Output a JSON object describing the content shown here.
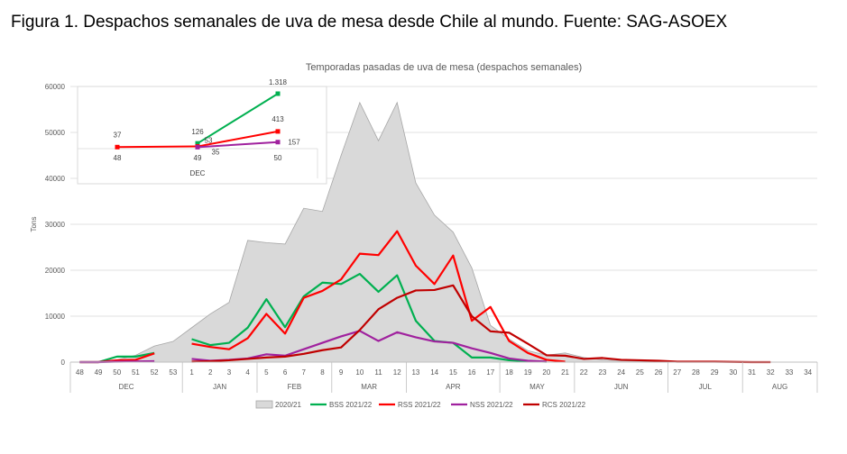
{
  "caption": "Figura 1. Despachos semanales de uva de mesa desde Chile al mundo. Fuente: SAG-ASOEX",
  "chart_data": [
    {
      "type": "line",
      "title": "Temporadas pasadas de uva de mesa (despachos semanales)",
      "ylabel": "Tons",
      "xlabel": "",
      "ylim": [
        0,
        60000
      ],
      "yticks": [
        0,
        10000,
        20000,
        30000,
        40000,
        50000,
        60000
      ],
      "grid": true,
      "legend_position": "bottom",
      "x": [
        "48",
        "49",
        "50",
        "51",
        "52",
        "53",
        "1",
        "2",
        "3",
        "4",
        "5",
        "6",
        "7",
        "8",
        "9",
        "10",
        "11",
        "12",
        "13",
        "14",
        "15",
        "16",
        "17",
        "18",
        "19",
        "20",
        "21",
        "22",
        "23",
        "24",
        "25",
        "26",
        "27",
        "28",
        "29",
        "30",
        "31",
        "32",
        "33",
        "34"
      ],
      "month_groups": [
        {
          "label": "DEC",
          "start": 0,
          "end": 5
        },
        {
          "label": "JAN",
          "start": 6,
          "end": 9
        },
        {
          "label": "FEB",
          "start": 10,
          "end": 13
        },
        {
          "label": "MAR",
          "start": 14,
          "end": 17
        },
        {
          "label": "APR",
          "start": 18,
          "end": 22
        },
        {
          "label": "MAY",
          "start": 23,
          "end": 26
        },
        {
          "label": "JUN",
          "start": 27,
          "end": 31
        },
        {
          "label": "JUL",
          "start": 32,
          "end": 35
        },
        {
          "label": "AUG",
          "start": 36,
          "end": 39
        }
      ],
      "series": [
        {
          "name": "2020/21",
          "kind": "area",
          "color": "#d9d9d9",
          "stroke": "#a6a6a6",
          "values": [
            0,
            0,
            500,
            1500,
            3500,
            4500,
            7500,
            10500,
            13000,
            26500,
            26000,
            25700,
            33500,
            32800,
            45000,
            56500,
            48200,
            56500,
            39000,
            32000,
            28300,
            20500,
            8000,
            5000,
            2500,
            1500,
            2000,
            1000,
            500,
            300,
            200,
            100,
            50,
            30,
            20,
            10,
            0,
            null,
            null,
            null
          ]
        },
        {
          "name": "BSS 2021/22",
          "kind": "line",
          "color": "#00b050",
          "values": [
            0,
            0,
            1200,
            1200,
            2000,
            null,
            5000,
            3700,
            4200,
            7500,
            13700,
            7600,
            14300,
            17300,
            17000,
            19200,
            15300,
            18900,
            9000,
            4600,
            4200,
            1000,
            1000,
            400,
            200,
            100,
            null,
            null,
            null,
            null,
            null,
            null,
            null,
            null,
            null,
            null,
            null,
            null,
            null,
            null
          ]
        },
        {
          "name": "RSS 2021/22",
          "kind": "line",
          "color": "#ff0000",
          "values": [
            0,
            0,
            400,
            500,
            1900,
            null,
            4000,
            3300,
            2800,
            5200,
            10500,
            6200,
            14000,
            15500,
            18000,
            23600,
            23300,
            28500,
            21000,
            17000,
            23200,
            9000,
            12000,
            4600,
            2000,
            500,
            100,
            null,
            null,
            null,
            null,
            null,
            null,
            null,
            null,
            null,
            null,
            null,
            null,
            null
          ]
        },
        {
          "name": "NSS 2021/22",
          "kind": "line",
          "color": "#a0219e",
          "values": [
            0,
            0,
            100,
            150,
            200,
            null,
            700,
            300,
            500,
            800,
            1700,
            1400,
            2800,
            4200,
            5600,
            6800,
            4600,
            6500,
            5400,
            4500,
            4200,
            3000,
            2000,
            800,
            300,
            100,
            null,
            null,
            null,
            null,
            null,
            null,
            null,
            null,
            null,
            null,
            null,
            null,
            null,
            null
          ]
        },
        {
          "name": "RCS 2021/22",
          "kind": "line",
          "color": "#c00000",
          "values": [
            null,
            null,
            null,
            null,
            null,
            null,
            100,
            200,
            400,
            700,
            1000,
            1200,
            1800,
            2600,
            3200,
            7000,
            11500,
            14000,
            15600,
            15700,
            16700,
            10000,
            6700,
            6400,
            4000,
            1500,
            1400,
            700,
            900,
            500,
            400,
            300,
            100,
            100,
            100,
            50,
            0,
            0,
            null,
            null
          ]
        }
      ]
    },
    {
      "type": "line",
      "role": "inset",
      "xlabel": "DEC",
      "x": [
        "48",
        "49",
        "50"
      ],
      "series": [
        {
          "name": "BSS 2021/22",
          "color": "#00b050",
          "values": [
            null,
            126,
            1318
          ],
          "labels": [
            "",
            "126",
            "1.318"
          ]
        },
        {
          "name": "RSS 2021/22",
          "color": "#ff0000",
          "values": [
            37,
            53,
            413
          ],
          "labels": [
            "37",
            "53",
            "413"
          ]
        },
        {
          "name": "NSS 2021/22",
          "color": "#a0219e",
          "values": [
            null,
            35,
            157
          ],
          "labels": [
            "",
            "35",
            "157"
          ]
        }
      ]
    }
  ]
}
